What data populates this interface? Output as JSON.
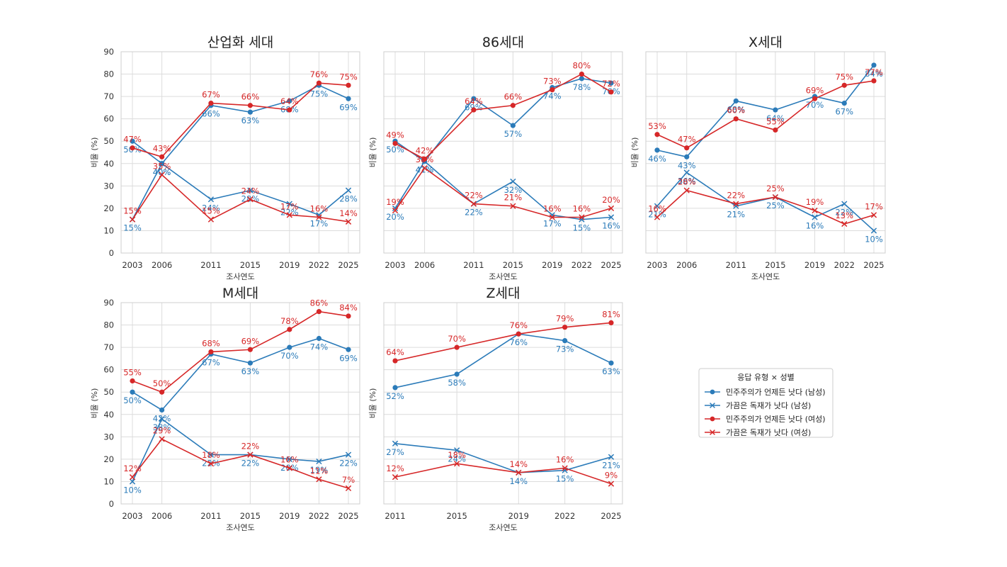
{
  "chart_data": {
    "type": "line",
    "xlabel": "조사연도",
    "ylabel": "비율 (%)",
    "ylim": [
      0,
      90
    ],
    "yticks": [
      0,
      10,
      20,
      30,
      40,
      50,
      60,
      70,
      80,
      90
    ],
    "grid": true,
    "colors": {
      "male": "#2b7bb9",
      "female": "#d62728"
    },
    "legend": {
      "title": "응답 유형 × 성별",
      "placement": "right",
      "entries": [
        {
          "label": "민주주의가 언제든 낫다 (남성)",
          "color": "#2b7bb9",
          "marker": "circle"
        },
        {
          "label": "가끔은 독재가 낫다 (남성)",
          "color": "#2b7bb9",
          "marker": "x"
        },
        {
          "label": "민주주의가 언제든 낫다 (여성)",
          "color": "#d62728",
          "marker": "circle"
        },
        {
          "label": "가끔은 독재가 낫다 (여성)",
          "color": "#d62728",
          "marker": "x"
        }
      ]
    },
    "panels": [
      {
        "title": "산업화 세대",
        "x": [
          2003,
          2006,
          2011,
          2015,
          2019,
          2022,
          2025
        ],
        "series": [
          {
            "name": "민주주의가 언제든 낫다 (남성)",
            "values": [
              50,
              40,
              66,
              63,
              68,
              75,
              69
            ]
          },
          {
            "name": "가끔은 독재가 낫다 (남성)",
            "values": [
              15,
              40,
              24,
              28,
              22,
              17,
              28
            ]
          },
          {
            "name": "민주주의가 언제든 낫다 (여성)",
            "values": [
              47,
              43,
              67,
              66,
              64,
              76,
              75
            ]
          },
          {
            "name": "가끔은 독재가 낫다 (여성)",
            "values": [
              15,
              35,
              15,
              24,
              17,
              16,
              14
            ]
          }
        ]
      },
      {
        "title": "86세대",
        "x": [
          2003,
          2006,
          2011,
          2015,
          2019,
          2022,
          2025
        ],
        "series": [
          {
            "name": "민주주의가 언제든 낫다 (남성)",
            "values": [
              50,
              41,
              69,
              57,
              74,
              78,
              76
            ]
          },
          {
            "name": "가끔은 독재가 낫다 (남성)",
            "values": [
              20,
              41,
              22,
              32,
              17,
              15,
              16
            ]
          },
          {
            "name": "민주주의가 언제든 낫다 (여성)",
            "values": [
              49,
              42,
              64,
              66,
              73,
              80,
              72
            ]
          },
          {
            "name": "가끔은 독재가 낫다 (여성)",
            "values": [
              19,
              38,
              22,
              21,
              16,
              16,
              20
            ]
          }
        ]
      },
      {
        "title": "X세대",
        "x": [
          2003,
          2006,
          2011,
          2015,
          2019,
          2022,
          2025
        ],
        "series": [
          {
            "name": "민주주의가 언제든 낫다 (남성)",
            "values": [
              46,
              43,
              68,
              64,
              70,
              67,
              84
            ]
          },
          {
            "name": "가끔은 독재가 낫다 (남성)",
            "values": [
              21,
              36,
              21,
              25,
              16,
              22,
              10
            ]
          },
          {
            "name": "민주주의가 언제든 낫다 (여성)",
            "values": [
              53,
              47,
              60,
              55,
              69,
              75,
              77
            ]
          },
          {
            "name": "가끔은 독재가 낫다 (여성)",
            "values": [
              16,
              28,
              22,
              25,
              19,
              13,
              17
            ]
          }
        ]
      },
      {
        "title": "M세대",
        "x": [
          2003,
          2006,
          2011,
          2015,
          2019,
          2022,
          2025
        ],
        "series": [
          {
            "name": "민주주의가 언제든 낫다 (남성)",
            "values": [
              50,
              42,
              67,
              63,
              70,
              74,
              69
            ]
          },
          {
            "name": "가끔은 독재가 낫다 (남성)",
            "values": [
              10,
              38,
              22,
              22,
              20,
              19,
              22
            ]
          },
          {
            "name": "민주주의가 언제든 낫다 (여성)",
            "values": [
              55,
              50,
              68,
              69,
              78,
              86,
              84
            ]
          },
          {
            "name": "가끔은 독재가 낫다 (여성)",
            "values": [
              12,
              29,
              18,
              22,
              16,
              11,
              7
            ]
          }
        ]
      },
      {
        "title": "Z세대",
        "x": [
          2011,
          2015,
          2019,
          2022,
          2025
        ],
        "series": [
          {
            "name": "민주주의가 언제든 낫다 (남성)",
            "values": [
              52,
              58,
              76,
              73,
              63
            ]
          },
          {
            "name": "가끔은 독재가 낫다 (남성)",
            "values": [
              27,
              24,
              14,
              15,
              21
            ]
          },
          {
            "name": "민주주의가 언제든 낫다 (여성)",
            "values": [
              64,
              70,
              76,
              79,
              81
            ]
          },
          {
            "name": "가끔은 독재가 낫다 (여성)",
            "values": [
              12,
              18,
              14,
              16,
              9
            ]
          }
        ]
      }
    ]
  }
}
